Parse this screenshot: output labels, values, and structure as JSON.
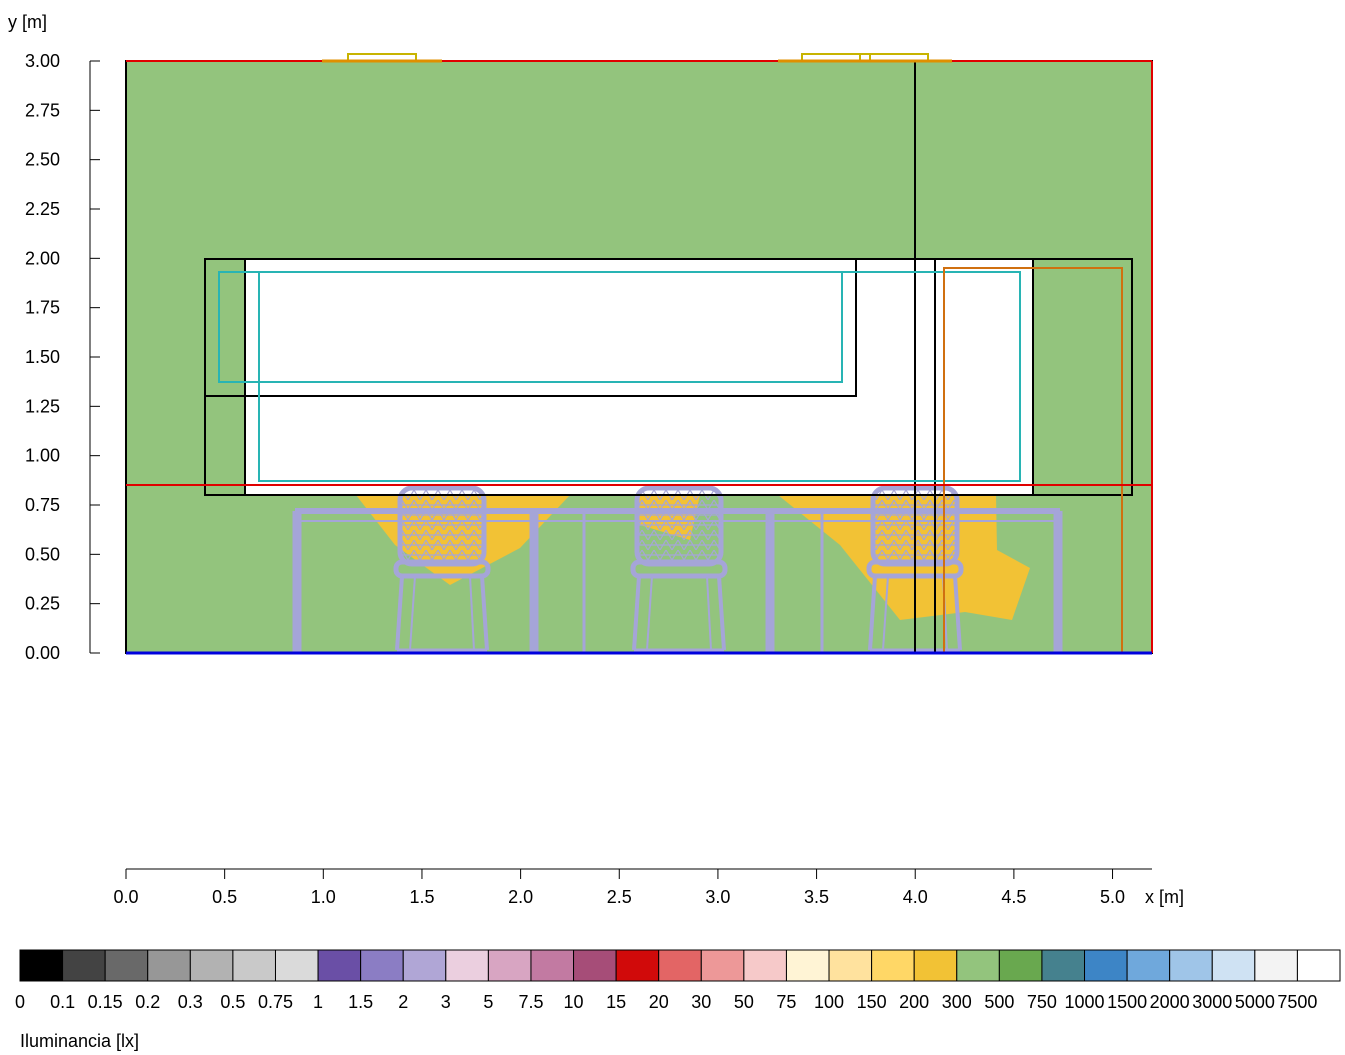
{
  "axes": {
    "y_label": "y [m]",
    "x_label": "x [m]",
    "y_ticks": [
      "0.00",
      "0.25",
      "0.50",
      "0.75",
      "1.00",
      "1.25",
      "1.50",
      "1.75",
      "2.00",
      "2.25",
      "2.50",
      "2.75",
      "3.00"
    ],
    "x_ticks": [
      "0.0",
      "0.5",
      "1.0",
      "1.5",
      "2.0",
      "2.5",
      "3.0",
      "3.5",
      "4.0",
      "4.5",
      "5.0"
    ],
    "x_range_m": [
      0,
      5.2
    ],
    "y_range_m": [
      0,
      3.0
    ]
  },
  "legend": {
    "title": "Iluminancia [lx]",
    "labels": [
      "0",
      "0.1",
      "0.15",
      "0.2",
      "0.3",
      "0.5",
      "0.75",
      "1",
      "1.5",
      "2",
      "3",
      "5",
      "7.5",
      "10",
      "15",
      "20",
      "30",
      "50",
      "75",
      "100",
      "150",
      "200",
      "300",
      "500",
      "750",
      "1000",
      "1500",
      "2000",
      "3000",
      "5000",
      "7500"
    ],
    "colors": [
      "#000000",
      "#434343",
      "#696969",
      "#979797",
      "#b2b2b2",
      "#c9c9c9",
      "#dadada",
      "#6a4fa6",
      "#8b7dc4",
      "#b0a6d6",
      "#ebcfdf",
      "#d8a5c2",
      "#c27aa2",
      "#a64d78",
      "#d10a0a",
      "#e36565",
      "#ed9898",
      "#f6c9c9",
      "#fff4d5",
      "#ffe29e",
      "#ffd766",
      "#f2c235",
      "#93c47d",
      "#69a84f",
      "#45818e",
      "#3d85c6",
      "#6fa8dc",
      "#9fc5e8",
      "#cfe2f3",
      "#f3f3f3",
      "#ffffff"
    ]
  },
  "colors": {
    "background_illuminance": "#93c47d",
    "hot_spots": "#f2c235",
    "window_opening": "#ffffff",
    "wall_edge": "#e00000",
    "floor_edge": "#0000dd",
    "outline": "#000000",
    "luminaire": "#c8b400",
    "inner_frame": "#28b4b4",
    "door_frame": "#d07010",
    "furniture": "#a5a5d8"
  }
}
